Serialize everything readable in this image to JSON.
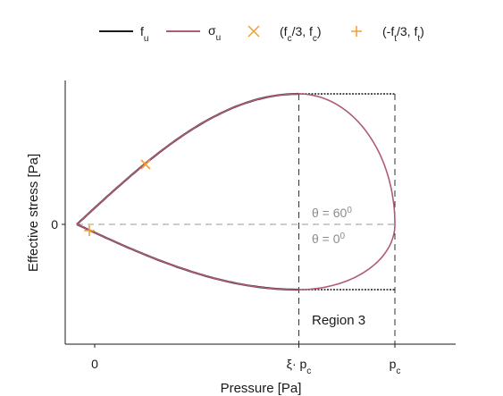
{
  "chart_data": {
    "type": "line",
    "xlabel": "Pressure [Pa]",
    "ylabel": "Effective stress [Pa]",
    "xlim": [
      -0.1,
      1.45
    ],
    "ylim": [
      -0.9,
      1.0
    ],
    "x_ticks": [
      {
        "value": 0,
        "label": "0"
      },
      {
        "value": 0.85,
        "label": "ξ· p",
        "sub": "c"
      },
      {
        "value": 1.25,
        "label": "p",
        "sub": "c"
      }
    ],
    "y_ticks": [
      {
        "value": 0,
        "label": "0"
      }
    ],
    "params": {
      "f_c": 0.6,
      "f_t": 0.06,
      "xi_p_c": 0.85,
      "p_c": 1.25,
      "peak_upper": 0.9,
      "peak_lower": -0.45
    },
    "legend": {
      "placement": "top-center",
      "entries": [
        {
          "label": "f",
          "sub": "u",
          "color": "#1a1a1a",
          "marker": "line"
        },
        {
          "label": "σ",
          "sub": "u",
          "color": "#b05a7a",
          "marker": "line"
        },
        {
          "label": "(f",
          "sub": "c",
          "label2": "/3, f",
          "sub2": "c",
          "label3": ")",
          "color": "#f0a030",
          "marker": "x"
        },
        {
          "label": "(-f",
          "sub": "t",
          "label2": "/3, f",
          "sub2": "t",
          "label3": ")",
          "color": "#f0a030",
          "marker": "plus"
        }
      ]
    },
    "series": [
      {
        "name": "f_u",
        "color": "#1a1a1a",
        "style": "solid"
      },
      {
        "name": "σ_u",
        "color": "#b05a7a",
        "style": "solid"
      }
    ],
    "points": [
      {
        "name": "(f_c/3, f_c)",
        "x": 0.2,
        "y": 0.4,
        "marker": "x",
        "color": "#f0a030"
      },
      {
        "name": "(-f_t/3, f_t)",
        "x": -0.02,
        "y": -0.04,
        "marker": "plus",
        "color": "#f0a030"
      }
    ],
    "annotations": {
      "theta60": {
        "text": "θ = 60",
        "sup": "0"
      },
      "theta0": {
        "text": "θ = 0",
        "sup": "0"
      },
      "region3": "Region 3"
    }
  }
}
